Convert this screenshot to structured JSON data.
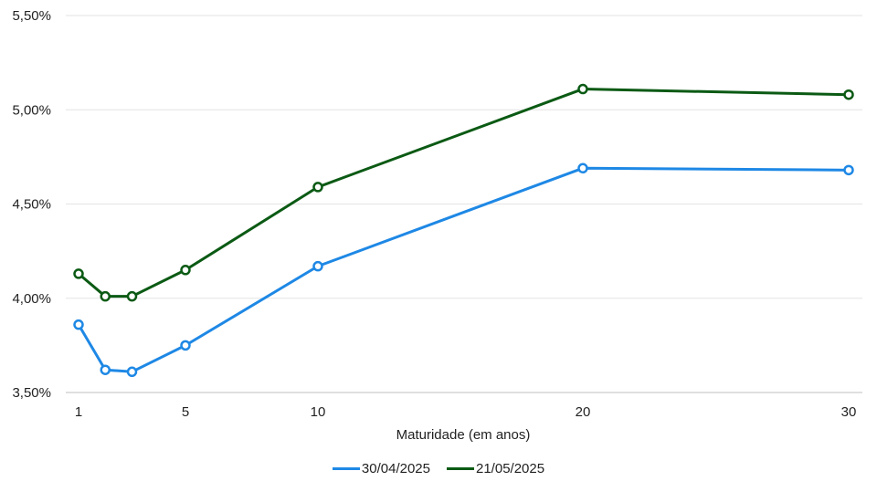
{
  "chart_data": {
    "type": "line",
    "x": [
      1,
      2,
      3,
      5,
      10,
      20,
      30
    ],
    "x_tick_labels": [
      "1",
      "5",
      "10",
      "20",
      "30"
    ],
    "x_tick_values": [
      1,
      5,
      10,
      20,
      30
    ],
    "xlabel": "Maturidade (em anos)",
    "ylabel": "",
    "ylim": [
      3.5,
      5.5
    ],
    "y_ticks": [
      3.5,
      4.0,
      4.5,
      5.0,
      5.5
    ],
    "y_tick_labels": [
      "3,50%",
      "4,00%",
      "4,50%",
      "5,00%",
      "5,50%"
    ],
    "grid": true,
    "legend_position": "bottom",
    "series": [
      {
        "name": "30/04/2025",
        "color": "#1e88e5",
        "values": [
          3.86,
          3.62,
          3.61,
          3.75,
          4.17,
          4.69,
          4.68
        ]
      },
      {
        "name": "21/05/2025",
        "color": "#0b5a14",
        "values": [
          4.13,
          4.01,
          4.01,
          4.15,
          4.59,
          5.11,
          5.08
        ]
      }
    ]
  }
}
